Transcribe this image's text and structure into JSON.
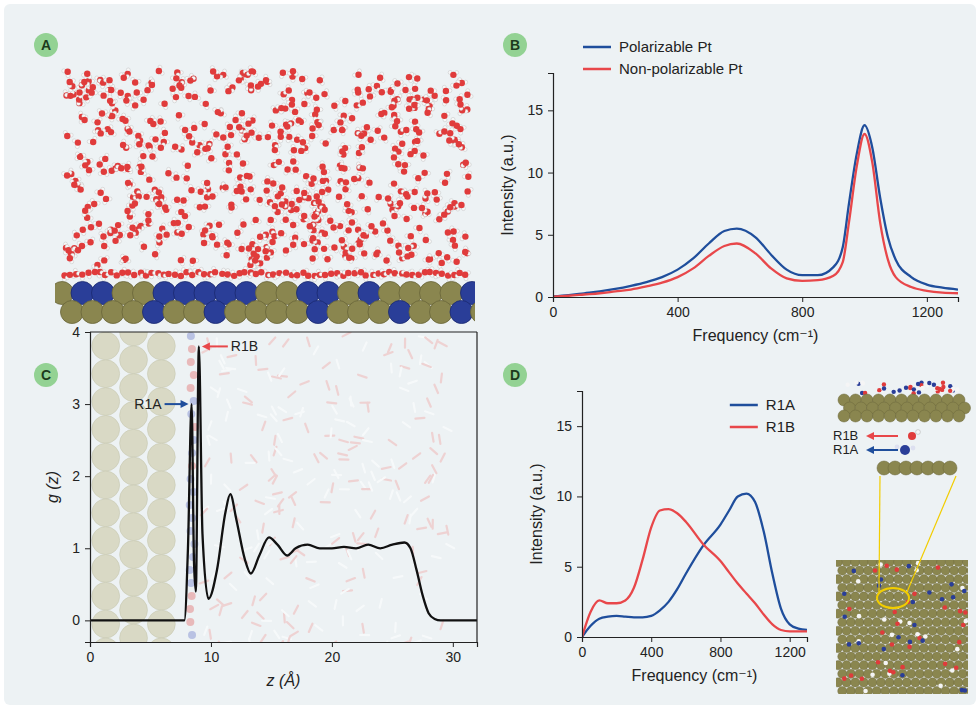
{
  "chart_data": [
    {
      "type": "image",
      "panel": "A"
    },
    {
      "type": "line",
      "panel": "B",
      "x_label": "Frequency (cm⁻¹)",
      "y_label": "Intensity (a.u.)",
      "x": [
        0,
        50,
        100,
        150,
        200,
        250,
        300,
        350,
        400,
        450,
        500,
        550,
        590,
        650,
        700,
        750,
        800,
        850,
        900,
        930,
        950,
        975,
        1000,
        1025,
        1050,
        1075,
        1100,
        1150,
        1200,
        1250,
        1300
      ],
      "series": [
        {
          "name": "Polarizable Pt",
          "color": "#1f4e9c",
          "values": [
            0.05,
            0.15,
            0.3,
            0.45,
            0.65,
            0.9,
            1.2,
            1.6,
            2.2,
            3.1,
            4.3,
            5.3,
            5.5,
            4.8,
            3.4,
            2.2,
            1.75,
            1.75,
            2.4,
            4.0,
            7.5,
            11.5,
            13.8,
            12.0,
            8.0,
            4.8,
            3.0,
            1.6,
            1.0,
            0.75,
            0.6
          ]
        },
        {
          "name": "Non-polarizable Pt",
          "color": "#e8474a",
          "values": [
            0.03,
            0.1,
            0.2,
            0.3,
            0.45,
            0.6,
            0.85,
            1.15,
            1.6,
            2.3,
            3.3,
            4.1,
            4.3,
            3.5,
            2.3,
            1.5,
            1.3,
            1.35,
            1.7,
            2.8,
            6.0,
            10.5,
            13.1,
            10.8,
            6.0,
            3.0,
            1.6,
            0.8,
            0.5,
            0.35,
            0.3
          ]
        }
      ],
      "xlim": [
        0,
        1300
      ],
      "xticks": [
        0,
        400,
        800,
        1200
      ],
      "ylim": [
        0,
        18
      ],
      "yticks": [
        0,
        5,
        10,
        15
      ],
      "legend": "top-left"
    },
    {
      "type": "line",
      "panel": "C",
      "x_label": "z (Å)",
      "y_label": "g (z)",
      "x": [
        0,
        7.8,
        8.1,
        8.4,
        8.6,
        8.75,
        9.0,
        9.3,
        9.8,
        10.5,
        11.2,
        11.6,
        12.1,
        12.8,
        13.3,
        14.0,
        14.8,
        15.5,
        16.3,
        17.0,
        18,
        19,
        20,
        21,
        22,
        23,
        24,
        25,
        26,
        26.5,
        27,
        27.5,
        28,
        28.5,
        29,
        32
      ],
      "series": [
        {
          "color": "#111111",
          "values": [
            0,
            0,
            1.0,
            3.0,
            0.8,
            0.4,
            3.8,
            1.2,
            0.3,
            0.7,
            1.5,
            1.75,
            1.4,
            0.85,
            0.65,
            0.9,
            1.15,
            1.05,
            0.9,
            1.0,
            1.05,
            1.0,
            1.0,
            1.02,
            1.0,
            1.05,
            1.0,
            1.05,
            1.08,
            1.0,
            0.7,
            0.35,
            0.1,
            0.02,
            0,
            0
          ]
        }
      ],
      "xlim": [
        0,
        32
      ],
      "xticks": [
        0,
        10,
        20,
        30
      ],
      "ylim": [
        -0.3,
        4
      ],
      "yticks": [
        0,
        1,
        2,
        3,
        4
      ],
      "annotations": [
        {
          "text": "R1A",
          "x": 8.4,
          "y": 3.0,
          "color": "#1f4e9c"
        },
        {
          "text": "R1B",
          "x": 9.0,
          "y": 3.8,
          "color": "#e8474a"
        }
      ]
    },
    {
      "type": "line",
      "panel": "D",
      "x_label": "Frequency (cm⁻¹)",
      "y_label": "Intensity (a.u.)",
      "x": [
        0,
        50,
        100,
        150,
        200,
        250,
        300,
        350,
        400,
        450,
        500,
        550,
        600,
        700,
        800,
        850,
        900,
        950,
        1000,
        1050,
        1100,
        1150,
        1200,
        1250,
        1300
      ],
      "series": [
        {
          "name": "R1A",
          "color": "#1f4e9c",
          "values": [
            0,
            0.8,
            1.3,
            1.45,
            1.5,
            1.45,
            1.4,
            1.4,
            1.5,
            1.9,
            2.5,
            3.4,
            4.5,
            6.5,
            8.0,
            9.0,
            10.0,
            10.2,
            9.6,
            7.5,
            4.5,
            2.0,
            0.9,
            0.6,
            0.5
          ]
        },
        {
          "name": "R1B",
          "color": "#e8474a",
          "values": [
            0,
            1.8,
            2.6,
            2.4,
            2.4,
            2.6,
            3.5,
            5.5,
            7.8,
            9.0,
            9.1,
            8.8,
            8.2,
            6.6,
            5.4,
            4.6,
            3.8,
            3.1,
            2.4,
            1.6,
            0.9,
            0.5,
            0.4,
            0.4,
            0.4
          ]
        }
      ],
      "xlim": [
        0,
        1300
      ],
      "xticks": [
        0,
        400,
        800,
        1200
      ],
      "ylim": [
        0,
        17.5
      ],
      "yticks": [
        0,
        5,
        10,
        15
      ],
      "legend": "top-right",
      "annotations": [
        {
          "text": "R1B",
          "color": "#e8474a"
        },
        {
          "text": "R1A",
          "color": "#1f4e9c"
        }
      ]
    }
  ]
}
